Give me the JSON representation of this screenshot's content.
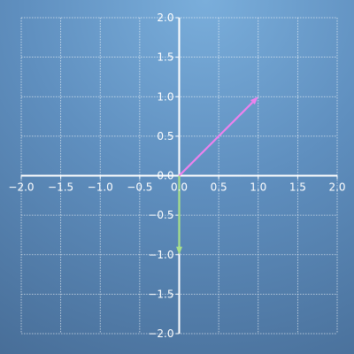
{
  "chart_data": {
    "type": "vector",
    "xlim": [
      -2.0,
      2.0
    ],
    "ylim": [
      -2.0,
      2.0
    ],
    "x_ticks": [
      -2.0,
      -1.5,
      -1.0,
      -0.5,
      0.0,
      0.5,
      1.0,
      1.5,
      2.0
    ],
    "y_ticks": [
      -2.0,
      -1.5,
      -1.0,
      -0.5,
      0.0,
      0.5,
      1.0,
      1.5,
      2.0
    ],
    "x_tick_labels": [
      "−2.0",
      "−1.5",
      "−1.0",
      "−0.5",
      "0.0",
      "0.5",
      "1.0",
      "1.5",
      "2.0"
    ],
    "y_tick_labels": [
      "−2.0",
      "−1.5",
      "−1.0",
      "−0.5",
      "0.0",
      "0.5",
      "1.0",
      "1.5",
      "2.0"
    ],
    "grid": true,
    "vectors": [
      {
        "from": [
          0,
          0
        ],
        "to": [
          1.0,
          1.0
        ],
        "color": "#ee82ee"
      },
      {
        "from": [
          0,
          0
        ],
        "to": [
          0.0,
          -1.0
        ],
        "color": "#a8e08a"
      }
    ]
  }
}
